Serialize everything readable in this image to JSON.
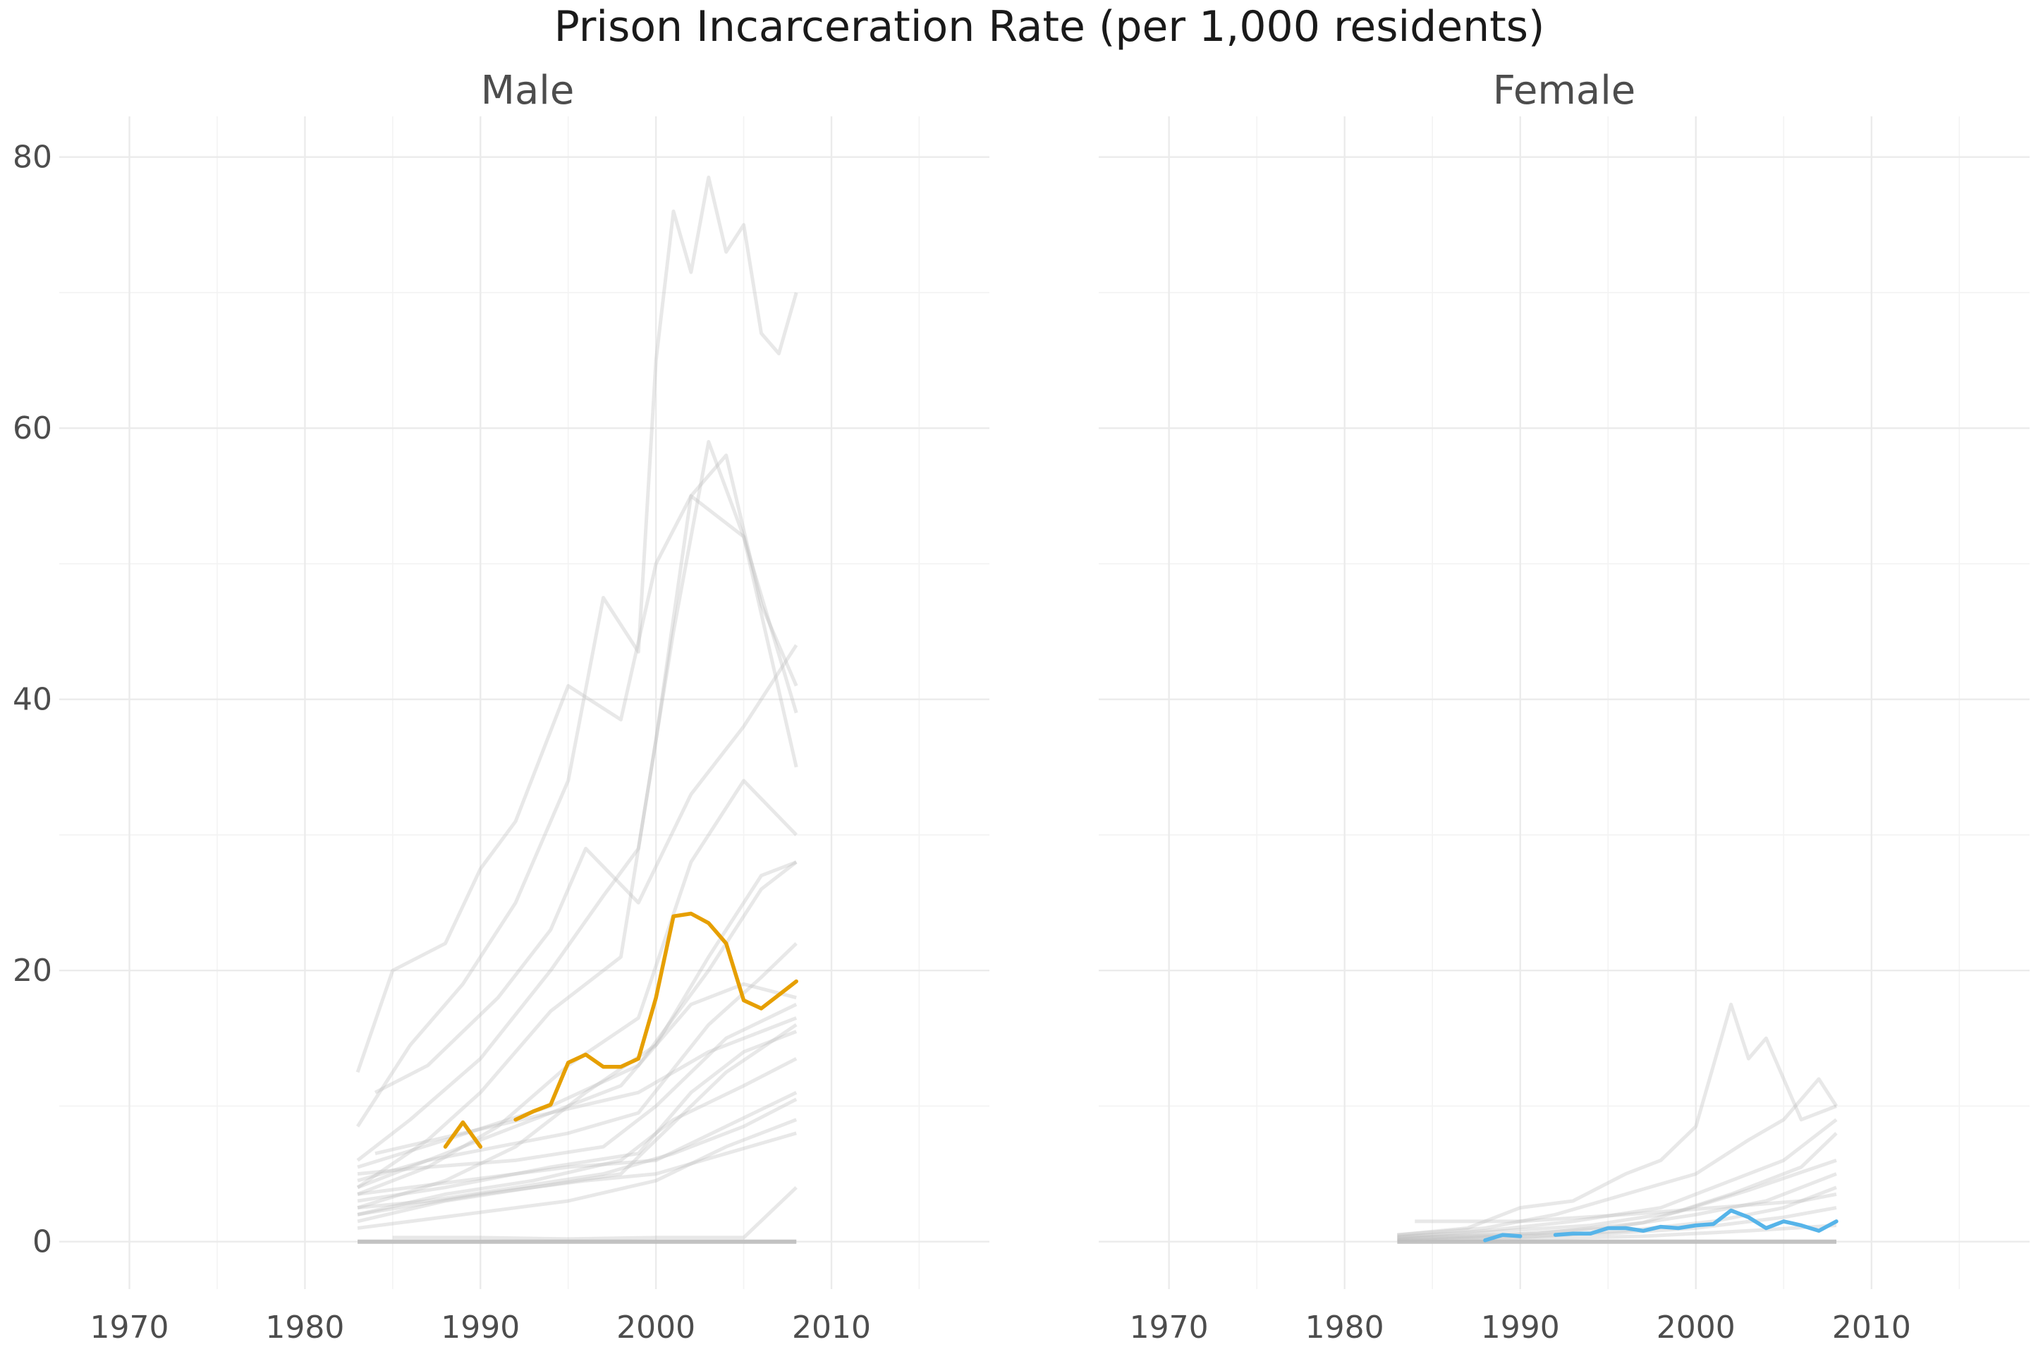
{
  "chart_data": {
    "type": "line",
    "title": "Prison Incarceration Rate (per 1,000 residents)",
    "xlabel": "",
    "ylabel": "",
    "xlim": [
      1966,
      2019
    ],
    "ylim": [
      -3.5,
      83
    ],
    "x_ticks": [
      "1970",
      "1980",
      "1990",
      "2000",
      "2010"
    ],
    "y_ticks": [
      "0",
      "20",
      "40",
      "60",
      "80"
    ],
    "grid": true,
    "legend": "none",
    "colors": {
      "male_highlight": "#E69F00",
      "female_highlight": "#56B4E9",
      "background_lines": "#bdbdbd"
    },
    "panels": [
      {
        "label": "Male",
        "highlight_color": "#E69F00",
        "highlight": {
          "segments": [
            {
              "x": [
                1988,
                1989,
                1990
              ],
              "y": [
                7.0,
                8.8,
                7.0
              ]
            },
            {
              "x": [
                1992,
                1993,
                1994,
                1995,
                1996,
                1997,
                1998,
                1999,
                2000,
                2001,
                2002,
                2003,
                2004,
                2005,
                2006,
                2007,
                2008
              ],
              "y": [
                9.0,
                9.6,
                10.1,
                13.2,
                13.8,
                12.9,
                12.9,
                13.5,
                18.0,
                24.0,
                24.2,
                23.5,
                22.0,
                17.8,
                17.2,
                18.2,
                19.2
              ]
            }
          ]
        },
        "background_series": [
          {
            "x": [
              1983,
              1985,
              1988,
              1990,
              1992,
              1995,
              1998,
              2000,
              2002,
              2005,
              2008
            ],
            "y": [
              12.5,
              20.0,
              22.0,
              27.5,
              31.0,
              41.0,
              38.5,
              50.0,
              55.0,
              52.0,
              35.0
            ]
          },
          {
            "x": [
              1983,
              1986,
              1989,
              1992,
              1995,
              1997,
              1999,
              2000,
              2001,
              2002,
              2003,
              2004,
              2005,
              2006,
              2007,
              2008
            ],
            "y": [
              8.5,
              14.5,
              19.0,
              25.0,
              34.0,
              47.5,
              43.5,
              65.0,
              76.0,
              71.5,
              78.5,
              73.0,
              75.0,
              67.0,
              65.5,
              70.0
            ]
          },
          {
            "x": [
              1983,
              1986,
              1990,
              1994,
              1997,
              1999,
              2001,
              2003,
              2005,
              2008
            ],
            "y": [
              6.0,
              9.0,
              13.5,
              20.0,
              25.5,
              29.0,
              45.0,
              59.0,
              52.0,
              39.0
            ]
          },
          {
            "x": [
              1983,
              1987,
              1990,
              1994,
              1998,
              2000,
              2002,
              2004,
              2006,
              2008
            ],
            "y": [
              4.0,
              7.5,
              11.0,
              17.0,
              21.0,
              37.0,
              55.0,
              58.0,
              47.0,
              41.0
            ]
          },
          {
            "x": [
              1983,
              1987,
              1991,
              1995,
              1999,
              2002,
              2005,
              2008
            ],
            "y": [
              3.5,
              5.5,
              8.5,
              13.0,
              16.5,
              28.0,
              34.0,
              30.0
            ]
          },
          {
            "x": [
              1983,
              1988,
              1992,
              1996,
              2000,
              2003,
              2006,
              2008
            ],
            "y": [
              2.5,
              4.5,
              7.0,
              11.0,
              14.5,
              21.0,
              27.0,
              28.0
            ]
          },
          {
            "x": [
              1983,
              1987,
              1991,
              1995,
              1999,
              2003,
              2006,
              2008
            ],
            "y": [
              4.5,
              6.0,
              7.0,
              8.0,
              9.5,
              16.0,
              19.5,
              22.0
            ]
          },
          {
            "x": [
              1983,
              1988,
              1993,
              1998,
              2000,
              2004,
              2008
            ],
            "y": [
              1.5,
              3.0,
              4.0,
              5.0,
              7.5,
              12.5,
              16.0
            ]
          },
          {
            "x": [
              1983,
              1987,
              1992,
              1997,
              2000,
              2004,
              2008
            ],
            "y": [
              5.0,
              5.5,
              6.0,
              7.0,
              10.0,
              15.0,
              17.5
            ]
          },
          {
            "x": [
              1983,
              1988,
              1993,
              1998,
              2001,
              2005,
              2008
            ],
            "y": [
              2.0,
              3.5,
              4.5,
              6.0,
              9.0,
              11.5,
              13.5
            ]
          },
          {
            "x": [
              1983,
              1988,
              1994,
              1999,
              2002,
              2005,
              2008
            ],
            "y": [
              3.0,
              4.0,
              5.5,
              6.5,
              11.0,
              14.0,
              15.5
            ]
          },
          {
            "x": [
              1983,
              1989,
              1995,
              2000,
              2004,
              2008
            ],
            "y": [
              1.0,
              2.0,
              3.0,
              4.5,
              7.0,
              9.0
            ]
          },
          {
            "x": [
              1983,
              1988,
              1993,
              1998,
              2002,
              2005,
              2008
            ],
            "y": [
              4.0,
              6.5,
              9.0,
              11.5,
              17.5,
              19.0,
              18.0
            ]
          },
          {
            "x": [
              1983,
              1990,
              1996,
              2000,
              2004,
              2008
            ],
            "y": [
              2.0,
              3.5,
              4.5,
              5.0,
              6.5,
              8.0
            ]
          },
          {
            "x": [
              1985,
              1990,
              1995,
              2000,
              2005,
              2008
            ],
            "y": [
              0.3,
              0.3,
              0.2,
              0.3,
              0.3,
              4.0
            ]
          },
          {
            "x": [
              1983,
              1988,
              1994,
              1999,
              2003,
              2006,
              2008
            ],
            "y": [
              5.5,
              7.5,
              10.0,
              13.0,
              20.0,
              26.0,
              28.0
            ]
          },
          {
            "x": [
              1984,
              1987,
              1991,
              1994,
              1996,
              1999,
              2002,
              2005,
              2008
            ],
            "y": [
              11.0,
              13.0,
              18.0,
              23.0,
              29.0,
              25.0,
              33.0,
              38.0,
              44.0
            ]
          },
          {
            "x": [
              1983,
              1989,
              1995,
              2000,
              2004,
              2008
            ],
            "y": [
              3.5,
              4.5,
              5.5,
              6.0,
              8.5,
              11.0
            ]
          },
          {
            "x": [
              1983,
              1987,
              1992,
              1997,
              2001,
              2005,
              2008
            ],
            "y": [
              2.5,
              3.0,
              4.0,
              5.0,
              6.5,
              8.5,
              10.5
            ]
          },
          {
            "x": [
              1984,
              1989,
              1994,
              1999,
              2003,
              2008
            ],
            "y": [
              6.5,
              8.0,
              9.5,
              11.0,
              14.0,
              16.5
            ]
          }
        ],
        "baseline": {
          "x": [
            1983,
            2008
          ],
          "y": [
            0,
            0
          ]
        }
      },
      {
        "label": "Female",
        "highlight_color": "#56B4E9",
        "highlight": {
          "segments": [
            {
              "x": [
                1988,
                1989,
                1990
              ],
              "y": [
                0.1,
                0.5,
                0.4
              ]
            },
            {
              "x": [
                1992,
                1993,
                1994,
                1995,
                1996,
                1997,
                1998,
                1999,
                2000,
                2001,
                2002,
                2003,
                2004,
                2005,
                2006,
                2007,
                2008
              ],
              "y": [
                0.5,
                0.6,
                0.6,
                1.0,
                1.0,
                0.8,
                1.1,
                1.0,
                1.2,
                1.3,
                2.3,
                1.8,
                1.0,
                1.5,
                1.2,
                0.8,
                1.5
              ]
            }
          ]
        },
        "background_series": [
          {
            "x": [
              1983,
              1987,
              1990,
              1993,
              1996,
              1998,
              2000,
              2001,
              2002,
              2003,
              2004,
              2005,
              2006,
              2008
            ],
            "y": [
              0.5,
              1.0,
              2.5,
              3.0,
              5.0,
              6.0,
              8.5,
              13.0,
              17.5,
              13.5,
              15.0,
              12.0,
              9.0,
              10.0
            ]
          },
          {
            "x": [
              1983,
              1988,
              1992,
              1996,
              2000,
              2003,
              2005,
              2007,
              2008
            ],
            "y": [
              0.5,
              1.0,
              2.0,
              3.5,
              5.0,
              7.5,
              9.0,
              12.0,
              10.0
            ]
          },
          {
            "x": [
              1983,
              1988,
              1993,
              1998,
              2002,
              2005,
              2008
            ],
            "y": [
              0.3,
              0.8,
              1.5,
              2.5,
              4.5,
              6.0,
              9.0
            ]
          },
          {
            "x": [
              1983,
              1989,
              1995,
              2000,
              2004,
              2008
            ],
            "y": [
              0.2,
              0.5,
              1.0,
              2.0,
              3.0,
              5.0
            ]
          },
          {
            "x": [
              1983,
              1990,
              1996,
              2001,
              2005,
              2008
            ],
            "y": [
              0.1,
              0.3,
              0.8,
              1.5,
              2.5,
              4.0
            ]
          },
          {
            "x": [
              1983,
              1988,
              1994,
              1999,
              2003,
              2008
            ],
            "y": [
              0.4,
              0.7,
              1.2,
              2.2,
              3.8,
              6.0
            ]
          },
          {
            "x": [
              1983,
              1989,
              1995,
              2000,
              2005,
              2008
            ],
            "y": [
              0.2,
              0.4,
              0.6,
              1.0,
              1.8,
              2.5
            ]
          },
          {
            "x": [
              1984,
              1990,
              1996,
              2001,
              2006,
              2008
            ],
            "y": [
              1.5,
              1.5,
              2.0,
              2.5,
              3.0,
              3.5
            ]
          },
          {
            "x": [
              1983,
              1991,
              1997,
              2002,
              2006,
              2008
            ],
            "y": [
              0.3,
              0.6,
              1.4,
              3.5,
              5.5,
              8.0
            ]
          },
          {
            "x": [
              1983,
              1990,
              1997,
              2003,
              2008
            ],
            "y": [
              0.1,
              0.2,
              0.4,
              0.8,
              1.2
            ]
          }
        ],
        "baseline": {
          "x": [
            1983,
            2008
          ],
          "y": [
            0,
            0
          ]
        }
      }
    ]
  }
}
